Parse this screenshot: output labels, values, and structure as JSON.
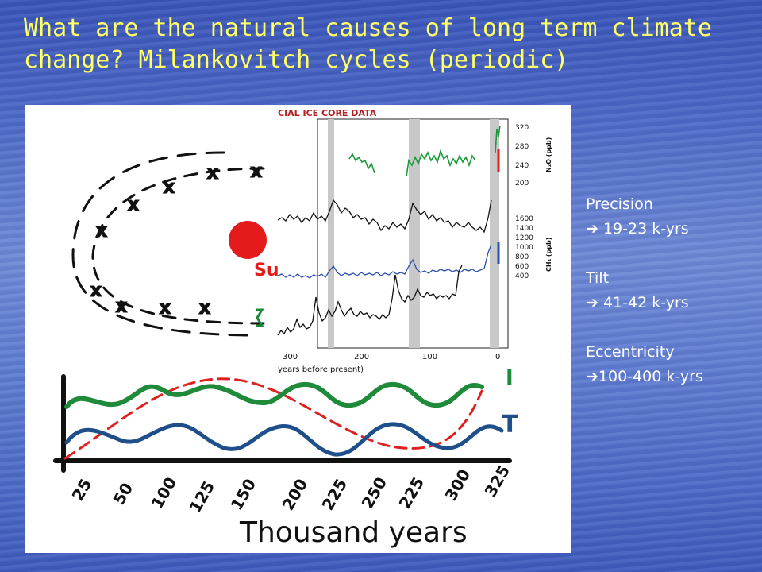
{
  "slide": {
    "title": "What are the natural causes of long term climate change? Milankovitch cycles (periodic)"
  },
  "side_notes": {
    "precision_label": "Precision",
    "precision_value": " 19-23 k-yrs",
    "tilt_label": "Tilt",
    "tilt_value": " 41-42 k-yrs",
    "eccentricity_label": "Eccentricity",
    "eccentricity_value": "100-400 k-yrs",
    "arrow_glyph": "➔"
  },
  "ice_core_panel": {
    "title": "CIAL ICE CORE DATA",
    "x_ticks": [
      "300",
      "200",
      "100",
      "0"
    ],
    "x_label": "years before present)",
    "n2o_ticks": [
      "320",
      "280",
      "240",
      "200"
    ],
    "n2o_label": "N₂O (ppb)",
    "ch4_ticks": [
      "1600",
      "1400",
      "1200",
      "1000",
      "800",
      "600",
      "400"
    ],
    "ch4_label": "CH₄ (ppb)"
  },
  "hand_drawing": {
    "sun_label": "Su",
    "wave_labels": [
      "I",
      "T"
    ],
    "x_ticks": [
      "25",
      "50",
      "100",
      "125",
      "150",
      "200",
      "225",
      "250",
      "225",
      "300",
      "325"
    ],
    "x_label": "Thousand years"
  },
  "colors": {
    "title": "#ffff66",
    "green_wave": "#1e8a3a",
    "blue_wave": "#1f4f8a",
    "red_dash": "#e02020",
    "n2o_series": "#1a9a3a",
    "ch4_series": "#2a4fb0"
  }
}
